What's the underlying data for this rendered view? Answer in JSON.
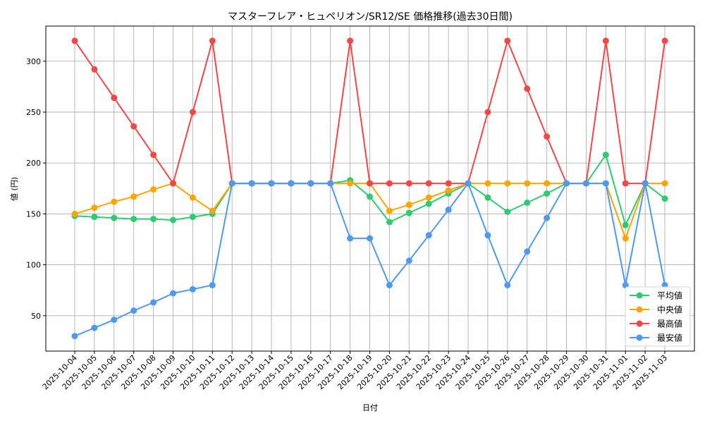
{
  "chart_data": {
    "type": "line",
    "title": "マスターフレア・ヒュペリオン/SR12/SE 価格推移(過去30日間)",
    "xlabel": "日付",
    "ylabel": "値 (円)",
    "ylim": [
      15,
      333
    ],
    "yticks": [
      50,
      100,
      150,
      200,
      250,
      300
    ],
    "grid": true,
    "legend_position": "lower right",
    "categories": [
      "2025-10-04",
      "2025-10-05",
      "2025-10-06",
      "2025-10-07",
      "2025-10-08",
      "2025-10-09",
      "2025-10-10",
      "2025-10-11",
      "2025-10-12",
      "2025-10-13",
      "2025-10-14",
      "2025-10-15",
      "2025-10-16",
      "2025-10-17",
      "2025-10-18",
      "2025-10-19",
      "2025-10-20",
      "2025-10-21",
      "2025-10-22",
      "2025-10-23",
      "2025-10-24",
      "2025-10-25",
      "2025-10-26",
      "2025-10-27",
      "2025-10-28",
      "2025-10-29",
      "2025-10-30",
      "2025-10-31",
      "2025-11-01",
      "2025-11-02",
      "2025-11-03"
    ],
    "series": [
      {
        "name": "平均値",
        "color": "#2ecc71",
        "values": [
          148,
          147,
          146,
          145,
          145,
          144,
          147,
          150,
          180,
          180,
          180,
          180,
          180,
          180,
          183,
          167,
          142,
          151,
          160,
          170,
          180,
          166,
          152,
          161,
          170,
          180,
          180,
          208,
          139,
          180,
          165
        ]
      },
      {
        "name": "中央値",
        "color": "#ffa500",
        "values": [
          150,
          156,
          162,
          167,
          174,
          180,
          166,
          153,
          180,
          180,
          180,
          180,
          180,
          180,
          180,
          180,
          153,
          159,
          166,
          173,
          180,
          180,
          180,
          180,
          180,
          180,
          180,
          180,
          126,
          180,
          180
        ]
      },
      {
        "name": "最高値",
        "color": "#f44848",
        "values": [
          320,
          292,
          264,
          236,
          208,
          180,
          250,
          320,
          180,
          180,
          180,
          180,
          180,
          180,
          320,
          180,
          180,
          180,
          180,
          180,
          180,
          250,
          320,
          273,
          226,
          180,
          180,
          320,
          180,
          180,
          320
        ]
      },
      {
        "name": "最安値",
        "color": "#4d9af5",
        "values": [
          30,
          38,
          46,
          55,
          63,
          72,
          76,
          80,
          180,
          180,
          180,
          180,
          180,
          180,
          126,
          126,
          80,
          104,
          129,
          154,
          180,
          129,
          80,
          113,
          146,
          180,
          180,
          180,
          80,
          180,
          80
        ]
      }
    ]
  }
}
